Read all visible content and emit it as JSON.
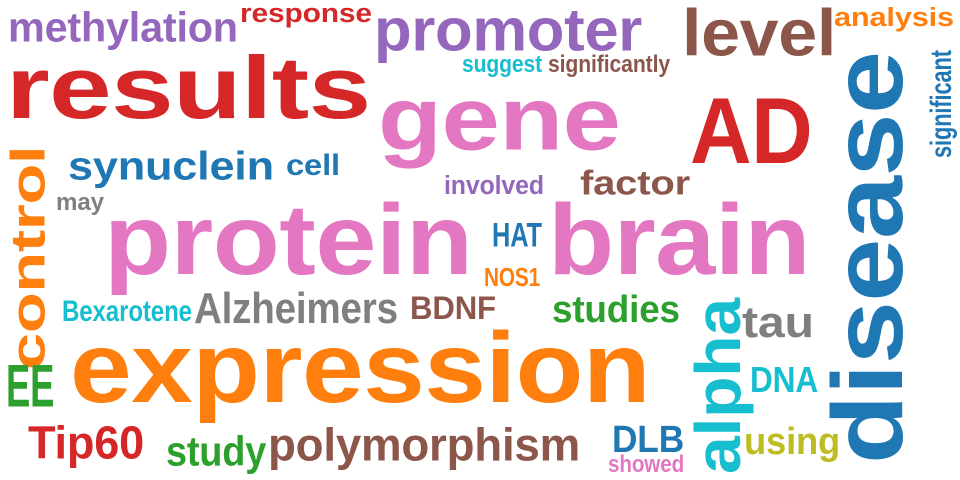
{
  "words": [
    {
      "text": "results",
      "color": "#d62728",
      "rotation": 0
    },
    {
      "text": "protein",
      "color": "#e377c2",
      "rotation": 0
    },
    {
      "text": "expression",
      "color": "#ff7f0e",
      "rotation": 0
    },
    {
      "text": "gene",
      "color": "#e377c2",
      "rotation": 0
    },
    {
      "text": "brain",
      "color": "#e377c2",
      "rotation": 0
    },
    {
      "text": "disease",
      "color": "#1f77b4",
      "rotation": -90
    },
    {
      "text": "AD",
      "color": "#d62728",
      "rotation": 0
    },
    {
      "text": "promoter",
      "color": "#9467bd",
      "rotation": 0
    },
    {
      "text": "level",
      "color": "#8c564b",
      "rotation": 0
    },
    {
      "text": "methylation",
      "color": "#9467bd",
      "rotation": 0
    },
    {
      "text": "response",
      "color": "#d62728",
      "rotation": 0
    },
    {
      "text": "analysis",
      "color": "#ff7f0e",
      "rotation": 0
    },
    {
      "text": "control",
      "color": "#ff7f0e",
      "rotation": -90
    },
    {
      "text": "alpha",
      "color": "#17becf",
      "rotation": -90
    },
    {
      "text": "synuclein",
      "color": "#1f77b4",
      "rotation": 0
    },
    {
      "text": "Alzheimers",
      "color": "#7f7f7f",
      "rotation": 0
    },
    {
      "text": "polymorphism",
      "color": "#8c564b",
      "rotation": 0
    },
    {
      "text": "studies",
      "color": "#2ca02c",
      "rotation": 0
    },
    {
      "text": "tau",
      "color": "#7f7f7f",
      "rotation": 0
    },
    {
      "text": "EE",
      "color": "#2ca02c",
      "rotation": 0
    },
    {
      "text": "Tip60",
      "color": "#d62728",
      "rotation": 0
    },
    {
      "text": "study",
      "color": "#2ca02c",
      "rotation": 0
    },
    {
      "text": "factor",
      "color": "#8c564b",
      "rotation": 0
    },
    {
      "text": "using",
      "color": "#bcbd22",
      "rotation": 0
    },
    {
      "text": "DLB",
      "color": "#1f77b4",
      "rotation": 0
    },
    {
      "text": "BDNF",
      "color": "#8c564b",
      "rotation": 0
    },
    {
      "text": "DNA",
      "color": "#17becf",
      "rotation": 0
    },
    {
      "text": "HAT",
      "color": "#1f77b4",
      "rotation": 0
    },
    {
      "text": "cell",
      "color": "#1f77b4",
      "rotation": 0
    },
    {
      "text": "involved",
      "color": "#9467bd",
      "rotation": 0
    },
    {
      "text": "significantly",
      "color": "#8c564b",
      "rotation": 0
    },
    {
      "text": "Bexarotene",
      "color": "#17becf",
      "rotation": 0
    },
    {
      "text": "suggest",
      "color": "#17becf",
      "rotation": 0
    },
    {
      "text": "may",
      "color": "#7f7f7f",
      "rotation": 0
    },
    {
      "text": "NOS1",
      "color": "#ff7f0e",
      "rotation": 0
    },
    {
      "text": "showed",
      "color": "#e377c2",
      "rotation": 0
    },
    {
      "text": "significant",
      "color": "#1f77b4",
      "rotation": -90
    }
  ]
}
